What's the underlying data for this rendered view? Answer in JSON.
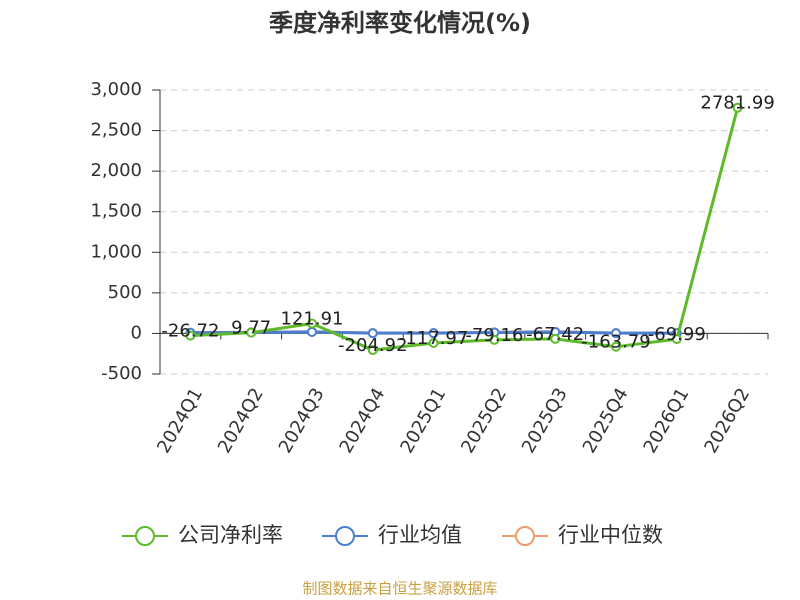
{
  "chart_data": {
    "type": "line",
    "title": "季度净利率变化情况(%)",
    "categories": [
      "2024Q1",
      "2024Q2",
      "2024Q3",
      "2024Q4",
      "2025Q1",
      "2025Q2",
      "2025Q3",
      "2025Q4",
      "2026Q1",
      "2026Q2"
    ],
    "series": [
      {
        "name": "公司净利率",
        "color": "#5dbb2a",
        "values": [
          -26.72,
          9.77,
          121.91,
          -204.92,
          -117.97,
          -79.16,
          -67.42,
          -163.79,
          -69.99,
          2781.99
        ]
      },
      {
        "name": "行业均值",
        "color": "#4a7fd1",
        "values": [
          8,
          12,
          18,
          3,
          3,
          12,
          18,
          3,
          3,
          null
        ]
      },
      {
        "name": "行业中位数",
        "color": "#ef9a6a",
        "values": [
          10,
          15,
          20,
          5,
          5,
          15,
          20,
          5,
          5,
          null
        ]
      }
    ],
    "ylim": [
      -500,
      3000
    ],
    "yticks": [
      -500,
      0,
      500,
      {
        "value": 1000,
        "label": "1,000"
      },
      {
        "value": 1500,
        "label": "1,500"
      },
      {
        "value": 2000,
        "label": "2,000"
      },
      {
        "value": 2500,
        "label": "2,500"
      },
      {
        "value": 3000,
        "label": "3,000"
      }
    ],
    "grid": true,
    "source": "制图数据来自恒生聚源数据库"
  }
}
